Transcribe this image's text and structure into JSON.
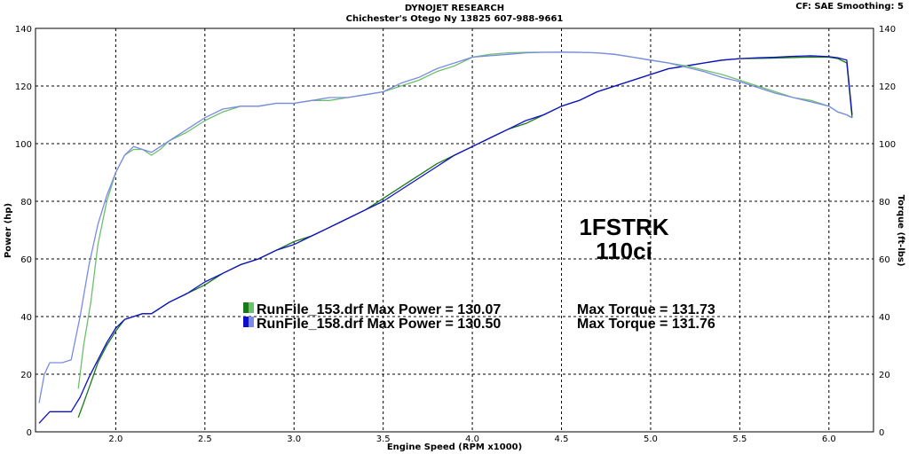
{
  "header": {
    "line1": "DYNOJET RESEARCH",
    "line2": "Chichester's Otego Ny 13825 607-988-9661",
    "settings": "CF: SAE  Smoothing: 5"
  },
  "annotation": {
    "line1": "1FSTRK",
    "line2": "110ci"
  },
  "chart_data": {
    "type": "line",
    "xlabel": "Engine Speed (RPM x1000)",
    "ylabel_left": "Power (hp)",
    "ylabel_right": "Torque (ft-lbs)",
    "xlim": [
      1.55,
      6.25
    ],
    "ylim": [
      0,
      140
    ],
    "x_ticks": [
      "2.0",
      "2.5",
      "3.0",
      "3.5",
      "4.0",
      "4.5",
      "5.0",
      "5.5",
      "6.0"
    ],
    "y_ticks": [
      "0",
      "20",
      "40",
      "60",
      "80",
      "100",
      "120",
      "140"
    ],
    "grid": true,
    "legend": [
      {
        "label": "RunFile_153.drf Max Power = 130.07",
        "torque": "Max Torque = 131.73",
        "color": "#1a7a1a"
      },
      {
        "label": "RunFile_158.drf Max Power = 130.50",
        "torque": "Max Torque = 131.76",
        "color": "#1010c8"
      }
    ],
    "series": [
      {
        "name": "RunFile_153.drf",
        "measure": "Power",
        "color": "#1a7a1a",
        "x": [
          1.79,
          1.82,
          1.86,
          1.9,
          1.95,
          2.0,
          2.05,
          2.1,
          2.15,
          2.2,
          2.3,
          2.4,
          2.5,
          2.6,
          2.7,
          2.8,
          2.9,
          3.0,
          3.1,
          3.2,
          3.3,
          3.4,
          3.5,
          3.6,
          3.7,
          3.8,
          3.9,
          4.0,
          4.1,
          4.2,
          4.3,
          4.4,
          4.5,
          4.6,
          4.7,
          4.8,
          4.9,
          5.0,
          5.1,
          5.2,
          5.3,
          5.4,
          5.5,
          5.6,
          5.7,
          5.8,
          5.9,
          6.0,
          6.05,
          6.1,
          6.13
        ],
        "y": [
          5,
          10,
          17,
          24,
          30,
          35,
          39,
          40,
          41,
          41,
          45,
          48,
          51,
          55,
          58,
          60,
          63,
          66,
          68,
          71,
          74,
          77,
          81,
          85,
          89,
          93,
          96,
          99,
          102,
          105,
          107,
          110,
          113,
          115,
          118,
          120,
          122,
          124,
          126,
          127,
          128,
          129,
          129.5,
          129.6,
          129.7,
          129.9,
          130.07,
          130,
          129.5,
          128,
          109
        ]
      },
      {
        "name": "RunFile_158.drf",
        "measure": "Power",
        "color": "#1010c8",
        "x": [
          1.57,
          1.6,
          1.63,
          1.66,
          1.7,
          1.75,
          1.8,
          1.85,
          1.9,
          1.95,
          2.0,
          2.05,
          2.1,
          2.15,
          2.2,
          2.3,
          2.4,
          2.5,
          2.6,
          2.7,
          2.8,
          2.9,
          3.0,
          3.1,
          3.2,
          3.3,
          3.4,
          3.5,
          3.6,
          3.7,
          3.8,
          3.9,
          4.0,
          4.1,
          4.2,
          4.3,
          4.4,
          4.5,
          4.6,
          4.7,
          4.8,
          4.9,
          5.0,
          5.1,
          5.2,
          5.3,
          5.4,
          5.5,
          5.6,
          5.7,
          5.8,
          5.9,
          6.0,
          6.05,
          6.1,
          6.13
        ],
        "y": [
          3,
          5,
          7,
          7,
          7,
          7,
          12,
          19,
          25,
          31,
          36,
          39,
          40,
          41,
          41,
          45,
          48,
          52,
          55,
          58,
          60,
          63,
          65,
          68,
          71,
          74,
          77,
          80,
          84,
          88,
          92,
          96,
          99,
          102,
          105,
          108,
          110,
          113,
          115,
          118,
          120,
          122,
          124,
          126,
          127,
          128,
          129,
          129.5,
          129.8,
          130,
          130.3,
          130.5,
          130.2,
          129.8,
          129,
          110
        ]
      },
      {
        "name": "RunFile_153.drf",
        "measure": "Torque",
        "color": "#6cc06c",
        "x": [
          1.79,
          1.82,
          1.86,
          1.9,
          1.95,
          2.0,
          2.05,
          2.1,
          2.15,
          2.2,
          2.25,
          2.3,
          2.4,
          2.5,
          2.6,
          2.7,
          2.8,
          2.9,
          3.0,
          3.1,
          3.2,
          3.3,
          3.4,
          3.5,
          3.6,
          3.7,
          3.8,
          3.9,
          4.0,
          4.1,
          4.2,
          4.3,
          4.4,
          4.5,
          4.6,
          4.7,
          4.8,
          4.9,
          5.0,
          5.1,
          5.2,
          5.3,
          5.4,
          5.5,
          5.6,
          5.7,
          5.8,
          5.9,
          6.0,
          6.05,
          6.1,
          6.13
        ],
        "y": [
          15,
          30,
          45,
          65,
          80,
          90,
          96,
          98,
          98,
          96,
          98,
          101,
          104,
          108,
          111,
          113,
          113,
          114,
          114,
          115,
          115,
          116,
          117,
          118,
          120,
          122,
          125,
          127,
          130,
          131,
          131.5,
          131.7,
          131.73,
          131.7,
          131.7,
          131.5,
          131,
          130,
          129,
          128,
          127,
          125.5,
          124,
          122,
          120,
          118,
          116,
          115,
          113,
          111,
          110,
          109
        ]
      },
      {
        "name": "RunFile_158.drf",
        "measure": "Torque",
        "color": "#7a8ae8",
        "x": [
          1.57,
          1.6,
          1.63,
          1.66,
          1.7,
          1.75,
          1.8,
          1.85,
          1.9,
          1.95,
          2.0,
          2.05,
          2.1,
          2.15,
          2.2,
          2.25,
          2.3,
          2.4,
          2.5,
          2.6,
          2.7,
          2.8,
          2.9,
          3.0,
          3.1,
          3.2,
          3.3,
          3.4,
          3.5,
          3.6,
          3.7,
          3.8,
          3.9,
          4.0,
          4.1,
          4.2,
          4.3,
          4.4,
          4.5,
          4.6,
          4.7,
          4.8,
          4.9,
          5.0,
          5.1,
          5.2,
          5.3,
          5.4,
          5.5,
          5.6,
          5.7,
          5.8,
          5.9,
          6.0,
          6.05,
          6.1,
          6.13
        ],
        "y": [
          10,
          20,
          24,
          24,
          24,
          25,
          40,
          58,
          72,
          82,
          90,
          96,
          99,
          98,
          97,
          99,
          101,
          105,
          109,
          112,
          113,
          113,
          114,
          114,
          115,
          116,
          116,
          117,
          118,
          121,
          123,
          126,
          128,
          130,
          130.5,
          131,
          131.5,
          131.7,
          131.76,
          131.7,
          131.5,
          131,
          130,
          129,
          128,
          126.5,
          125,
          123,
          121.5,
          119.5,
          117.5,
          116,
          114.5,
          113,
          111,
          110,
          109
        ]
      }
    ]
  }
}
